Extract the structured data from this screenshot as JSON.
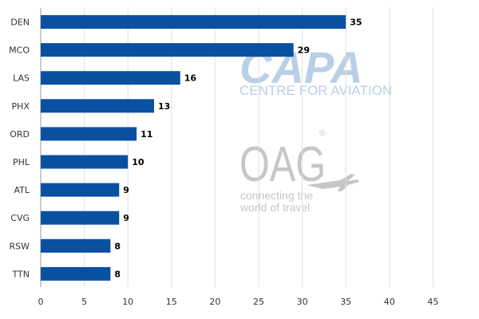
{
  "chart_data": {
    "type": "bar",
    "orientation": "horizontal",
    "categories": [
      "DEN",
      "MCO",
      "LAS",
      "PHX",
      "ORD",
      "PHL",
      "ATL",
      "CVG",
      "RSW",
      "TTN"
    ],
    "values": [
      35,
      29,
      16,
      13,
      11,
      10,
      9,
      9,
      8,
      8
    ],
    "xlim": [
      0,
      45
    ],
    "x_ticks": [
      0,
      5,
      10,
      15,
      20,
      25,
      30,
      35,
      40,
      45
    ],
    "grid": "vertical",
    "bar_color": "#0a50a0",
    "data_labels": true
  },
  "watermarks": {
    "capa": {
      "logo": "CAPA",
      "tagline": "CENTRE FOR AVIATION",
      "color": "#b9cfe6"
    },
    "oag": {
      "logo": "OAG",
      "registered": "®",
      "line1": "connecting the",
      "line2": "world of travel",
      "color": "#c6c6c6",
      "icon": "airplane-icon"
    }
  }
}
